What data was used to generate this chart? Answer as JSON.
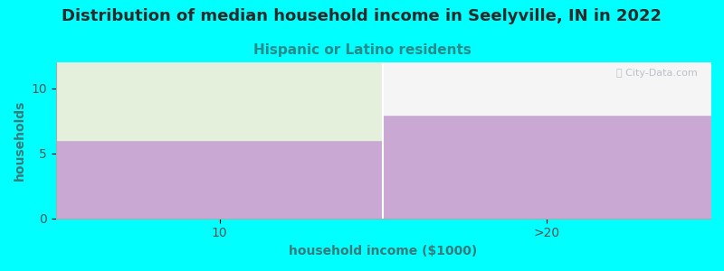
{
  "title": "Distribution of median household income in Seelyville, IN in 2022",
  "subtitle": "Hispanic or Latino residents",
  "xlabel": "household income ($1000)",
  "ylabel": "households",
  "categories": [
    "10",
    ">20"
  ],
  "values": [
    6,
    8
  ],
  "bar_color": "#c9a8d4",
  "bar_top_color_left": "#e4f0dc",
  "bar_top_color_right": "#f5f5f5",
  "background_color": "#00FFFF",
  "plot_bg_color": "#ffffff",
  "title_color": "#2a2a2a",
  "subtitle_color": "#2a8a8a",
  "axis_label_color": "#3a7a7a",
  "tick_color": "#555555",
  "ylim": [
    0,
    12
  ],
  "yticks": [
    0,
    5,
    10
  ],
  "title_fontsize": 13,
  "subtitle_fontsize": 11,
  "label_fontsize": 10,
  "tick_fontsize": 10
}
